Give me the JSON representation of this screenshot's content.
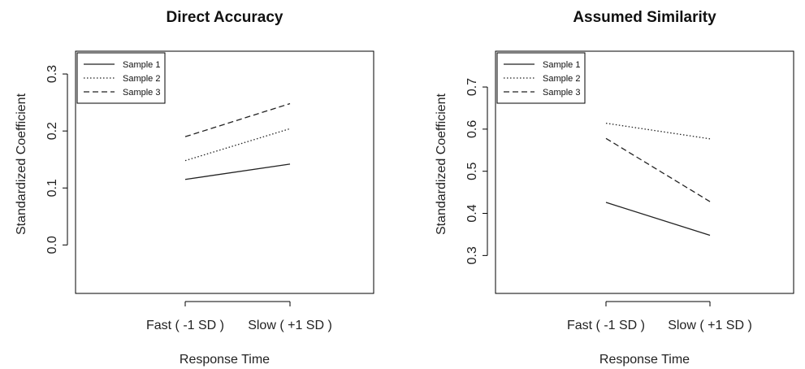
{
  "chart_data": [
    {
      "type": "line",
      "title": "Direct Accuracy",
      "xlabel": "Response Time",
      "ylabel": "Standardized Coefficient",
      "categories": [
        "Fast ( -1 SD )",
        "Slow ( +1 SD )"
      ],
      "yticks": [
        0.0,
        0.1,
        0.2,
        0.3
      ],
      "ytick_labels": [
        "0.0",
        "0.1",
        "0.2",
        "0.3"
      ],
      "ylim": [
        -0.085,
        0.34
      ],
      "grid": false,
      "legend_position": "top-left",
      "series": [
        {
          "name": "Sample 1",
          "style": "solid",
          "values": [
            0.115,
            0.142
          ]
        },
        {
          "name": "Sample 2",
          "style": "dotted",
          "values": [
            0.148,
            0.204
          ]
        },
        {
          "name": "Sample 3",
          "style": "dashed",
          "values": [
            0.19,
            0.248
          ]
        }
      ]
    },
    {
      "type": "line",
      "title": "Assumed Similarity",
      "xlabel": "Response Time",
      "ylabel": "Standardized Coefficient",
      "categories": [
        "Fast ( -1 SD )",
        "Slow ( +1 SD )"
      ],
      "yticks": [
        0.3,
        0.4,
        0.5,
        0.6,
        0.7
      ],
      "ytick_labels": [
        "0.3",
        "0.4",
        "0.5",
        "0.6",
        "0.7"
      ],
      "ylim": [
        0.21,
        0.785
      ],
      "grid": false,
      "legend_position": "top-left",
      "series": [
        {
          "name": "Sample 1",
          "style": "solid",
          "values": [
            0.426,
            0.348
          ]
        },
        {
          "name": "Sample 2",
          "style": "dotted",
          "values": [
            0.614,
            0.577
          ]
        },
        {
          "name": "Sample 3",
          "style": "dashed",
          "values": [
            0.578,
            0.428
          ]
        }
      ]
    }
  ]
}
